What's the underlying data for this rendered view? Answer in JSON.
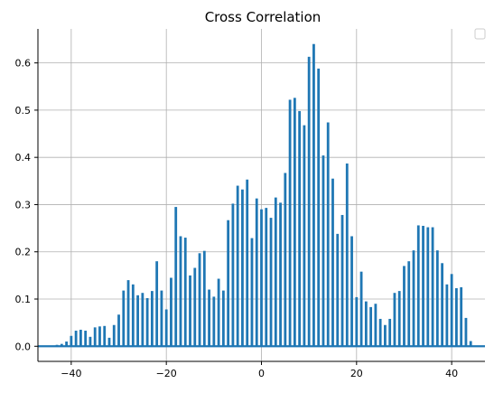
{
  "chart_data": {
    "type": "bar",
    "title": "Cross Correlation",
    "xlabel": "",
    "ylabel": "",
    "xlim": [
      -47,
      47
    ],
    "ylim": [
      -0.032,
      0.672
    ],
    "grid": true,
    "legend": {
      "placement": "top-right",
      "entries": []
    },
    "x_ticks": [
      -40,
      -20,
      0,
      20,
      40
    ],
    "x_tick_labels": [
      "−40",
      "−20",
      "0",
      "20",
      "40"
    ],
    "y_ticks": [
      0.0,
      0.1,
      0.2,
      0.3,
      0.4,
      0.5,
      0.6
    ],
    "y_tick_labels": [
      "0.0",
      "0.1",
      "0.2",
      "0.3",
      "0.4",
      "0.5",
      "0.6"
    ],
    "baseline": 0,
    "x": [
      -46,
      -45,
      -44,
      -43,
      -42,
      -41,
      -40,
      -39,
      -38,
      -37,
      -36,
      -35,
      -34,
      -33,
      -32,
      -31,
      -30,
      -29,
      -28,
      -27,
      -26,
      -25,
      -24,
      -23,
      -22,
      -21,
      -20,
      -19,
      -18,
      -17,
      -16,
      -15,
      -14,
      -13,
      -12,
      -11,
      -10,
      -9,
      -8,
      -7,
      -6,
      -5,
      -4,
      -3,
      -2,
      -1,
      0,
      1,
      2,
      3,
      4,
      5,
      6,
      7,
      8,
      9,
      10,
      11,
      12,
      13,
      14,
      15,
      16,
      17,
      18,
      19,
      20,
      21,
      22,
      23,
      24,
      25,
      26,
      27,
      28,
      29,
      30,
      31,
      32,
      33,
      34,
      35,
      36,
      37,
      38,
      39,
      40,
      41,
      42,
      43,
      44,
      45,
      46
    ],
    "values": [
      0.0,
      0.0,
      0.0,
      0.003,
      0.005,
      0.01,
      0.022,
      0.033,
      0.035,
      0.033,
      0.02,
      0.04,
      0.042,
      0.043,
      0.018,
      0.045,
      0.067,
      0.118,
      0.14,
      0.131,
      0.108,
      0.113,
      0.102,
      0.117,
      0.18,
      0.118,
      0.078,
      0.145,
      0.295,
      0.233,
      0.23,
      0.15,
      0.166,
      0.197,
      0.202,
      0.12,
      0.105,
      0.143,
      0.118,
      0.267,
      0.302,
      0.34,
      0.332,
      0.353,
      0.229,
      0.313,
      0.29,
      0.293,
      0.272,
      0.315,
      0.304,
      0.367,
      0.522,
      0.526,
      0.498,
      0.468,
      0.613,
      0.64,
      0.588,
      0.404,
      0.474,
      0.355,
      0.238,
      0.278,
      0.387,
      0.233,
      0.104,
      0.158,
      0.095,
      0.083,
      0.09,
      0.058,
      0.045,
      0.058,
      0.113,
      0.117,
      0.17,
      0.18,
      0.203,
      0.256,
      0.255,
      0.252,
      0.252,
      0.203,
      0.176,
      0.131,
      0.153,
      0.123,
      0.125,
      0.06,
      0.011,
      0.0,
      0.0
    ],
    "bar_color": "#1f77b4",
    "grid_color": "#b0b0b0"
  }
}
